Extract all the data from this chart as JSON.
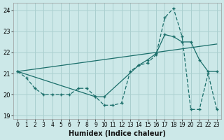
{
  "xlabel": "Humidex (Indice chaleur)",
  "xlim": [
    -0.5,
    23.5
  ],
  "ylim": [
    18.85,
    24.35
  ],
  "yticks": [
    19,
    20,
    21,
    22,
    23,
    24
  ],
  "xticks": [
    0,
    1,
    2,
    3,
    4,
    5,
    6,
    7,
    8,
    9,
    10,
    11,
    12,
    13,
    14,
    15,
    16,
    17,
    18,
    19,
    20,
    21,
    22,
    23
  ],
  "bg_color": "#cce8e8",
  "grid_color": "#aacfcf",
  "line_color": "#1a6e6a",
  "dashed_x": [
    0,
    1,
    2,
    3,
    4,
    5,
    6,
    7,
    8,
    9,
    10,
    11,
    12,
    13,
    14,
    15,
    16,
    17,
    18,
    19,
    20,
    21,
    22,
    23
  ],
  "dashed_y": [
    21.1,
    20.8,
    20.3,
    20.0,
    20.0,
    20.0,
    20.0,
    20.3,
    20.3,
    19.9,
    19.5,
    19.5,
    19.6,
    21.1,
    21.4,
    21.5,
    21.9,
    23.65,
    24.1,
    22.75,
    19.3,
    19.3,
    21.0,
    19.3
  ],
  "solid_x": [
    0,
    9,
    10,
    14,
    15,
    16,
    17,
    18,
    19,
    20,
    21,
    22,
    23
  ],
  "solid_y": [
    21.1,
    19.9,
    19.9,
    21.4,
    21.65,
    21.95,
    22.85,
    22.75,
    22.5,
    22.5,
    21.65,
    21.1,
    21.1
  ],
  "trend_x": [
    0,
    23
  ],
  "trend_y": [
    21.1,
    22.4
  ]
}
